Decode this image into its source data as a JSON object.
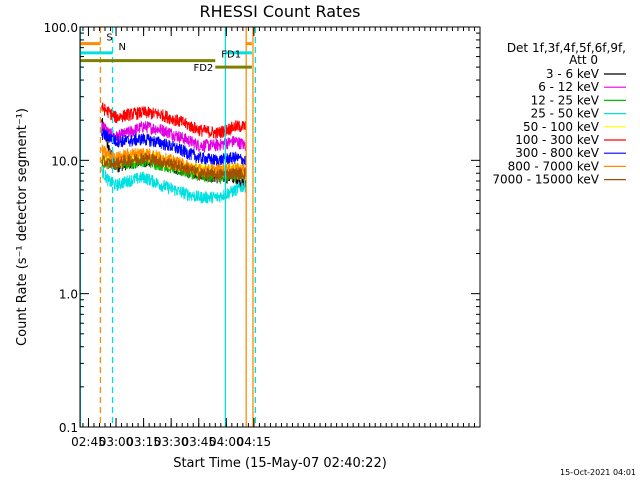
{
  "chart_data": {
    "type": "line",
    "title": "RHESSI Count Rates",
    "xlabel": "Start Time (15-May-07 02:40:22)",
    "ylabel": "Count Rate (s⁻¹ detector segment⁻¹)",
    "y_scale": "log",
    "ylim": [
      0.1,
      100
    ],
    "xlim_min": [
      40.4,
      258.0
    ],
    "x_tick_minutes": [
      45,
      60,
      75,
      90,
      105,
      120,
      135
    ],
    "x_tick_labels": [
      "02:45",
      "03:00",
      "03:15",
      "03:30",
      "03:45",
      "04:00",
      "04:15"
    ],
    "y_tick_values": [
      0.1,
      1.0,
      10.0,
      100.0
    ],
    "y_tick_labels": [
      "0.1",
      "1.0",
      "10.0",
      "100.0"
    ],
    "grid": false,
    "legend_position": "right",
    "legend_header": [
      "Det 1f,3f,4f,5f,6f,9f,",
      "Att 0"
    ],
    "data_window_min": [
      52.2,
      130.5
    ],
    "series": [
      {
        "name": "3 - 6 keV",
        "color": "#000000",
        "x": [
          52,
          56,
          60,
          66,
          75,
          85,
          95,
          105,
          115,
          125,
          130
        ],
        "values": [
          20,
          12,
          9,
          9.5,
          10,
          9.5,
          8.5,
          8.0,
          7.5,
          7.5,
          6.5
        ]
      },
      {
        "name": "6 - 12 keV",
        "color": "#e000e0",
        "x": [
          52,
          56,
          60,
          66,
          75,
          85,
          95,
          105,
          115,
          125,
          130
        ],
        "values": [
          19,
          16,
          15,
          16,
          18,
          17,
          15,
          13,
          13,
          14,
          13
        ]
      },
      {
        "name": "12 - 25 keV",
        "color": "#00c000",
        "x": [
          52,
          56,
          60,
          66,
          75,
          85,
          95,
          105,
          115,
          125,
          130
        ],
        "values": [
          10,
          9.5,
          9.5,
          9.5,
          10,
          9.3,
          8.5,
          7.8,
          7.5,
          7.8,
          8.0
        ]
      },
      {
        "name": "25 - 50 keV",
        "color": "#00e0e0",
        "x": [
          52,
          56,
          60,
          66,
          75,
          85,
          95,
          105,
          115,
          125,
          130
        ],
        "values": [
          8.5,
          7,
          6.5,
          7,
          7.5,
          6.5,
          5.8,
          5.3,
          5.3,
          6.0,
          6.5
        ]
      },
      {
        "name": "50 - 100 keV",
        "color": "#ffff00",
        "x": [
          52,
          56,
          60,
          66,
          75,
          85,
          95,
          105,
          115,
          125,
          130
        ],
        "values": [
          10.5,
          10,
          10,
          10.5,
          11,
          10,
          9,
          8.5,
          8.3,
          8.5,
          8.5
        ]
      },
      {
        "name": "100 - 300 keV",
        "color": "#ff0000",
        "x": [
          52,
          56,
          60,
          66,
          75,
          85,
          95,
          105,
          115,
          125,
          130
        ],
        "values": [
          25,
          23,
          21,
          22,
          23,
          22,
          19.5,
          17,
          16,
          18,
          18
        ]
      },
      {
        "name": "300 - 800 keV",
        "color": "#0000ff",
        "x": [
          52,
          56,
          60,
          66,
          75,
          85,
          95,
          105,
          115,
          125,
          130
        ],
        "values": [
          16,
          15,
          14,
          14,
          14.5,
          13.5,
          12,
          10.5,
          10,
          10.5,
          10
        ]
      },
      {
        "name": "800 - 7000 keV",
        "color": "#ff8c00",
        "x": [
          52,
          56,
          60,
          66,
          75,
          85,
          95,
          105,
          115,
          125,
          130
        ],
        "values": [
          12,
          11,
          10.5,
          11,
          11.5,
          10.5,
          9.5,
          8.5,
          8.5,
          8.7,
          8.5
        ]
      },
      {
        "name": "7000 - 15000 keV",
        "color": "#a05000",
        "x": [
          52,
          56,
          60,
          66,
          75,
          85,
          95,
          105,
          115,
          125,
          130
        ],
        "values": [
          10,
          9.5,
          9.5,
          10,
          10.5,
          9.8,
          9.0,
          8.0,
          7.8,
          8.0,
          8.0
        ]
      }
    ],
    "annotations": [
      {
        "label": "S",
        "color": "#ff8c00",
        "segments": [
          [
            40.4,
            51.5
          ],
          [
            130.8,
            133.9
          ]
        ],
        "y": 75
      },
      {
        "label": "N",
        "color": "#00e0e0",
        "segments": [
          [
            40.4,
            58.1
          ],
          [
            119.5,
            133.9
          ]
        ],
        "y": 64
      },
      {
        "label": "FD1",
        "color": "#808000",
        "segments": [
          [
            40.4,
            114.0
          ]
        ],
        "y": 56
      },
      {
        "label": "FD2",
        "color": "#808000",
        "segments": [
          [
            114.0,
            133.9
          ]
        ],
        "y": 50
      }
    ],
    "vertical_lines": [
      {
        "x": 40.6,
        "color": "#00e0e0",
        "style": "solid"
      },
      {
        "x": 51.5,
        "color": "#ff8c00",
        "style": "dashed"
      },
      {
        "x": 58.1,
        "color": "#00e0e0",
        "style": "dashed"
      },
      {
        "x": 119.5,
        "color": "#00e0e0",
        "style": "solid"
      },
      {
        "x": 130.8,
        "color": "#ff8c00",
        "style": "solid"
      },
      {
        "x": 134.5,
        "color": "#ff8c00",
        "style": "solid"
      },
      {
        "x": 135.8,
        "color": "#00e0e0",
        "style": "dashed"
      }
    ],
    "timestamp": "15-Oct-2021 04:01"
  }
}
